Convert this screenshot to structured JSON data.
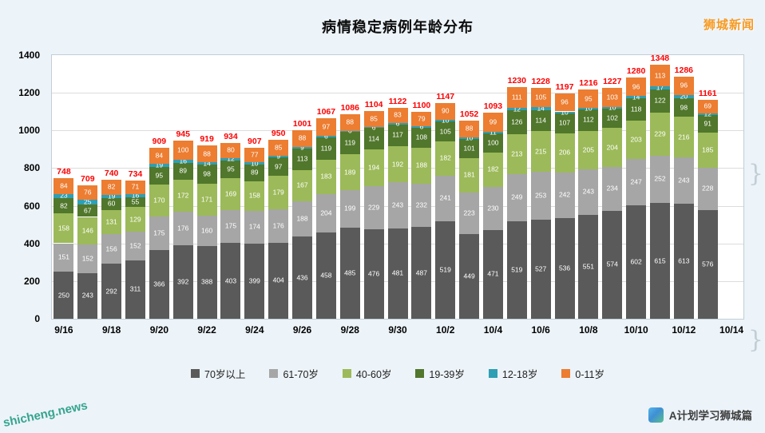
{
  "page": {
    "watermark_top_right": "狮城新闻",
    "watermark_bottom_left": "shicheng.news",
    "credit_bottom_right": "A计划学习狮城篇",
    "brace_glyph": "}"
  },
  "chart_data": {
    "type": "bar",
    "stacked": true,
    "title": "病情稳定病例年龄分布",
    "categories": [
      "9/16",
      "9/17",
      "9/18",
      "9/19",
      "9/20",
      "9/21",
      "9/22",
      "9/23",
      "9/24",
      "9/25",
      "9/26",
      "9/27",
      "9/28",
      "9/29",
      "9/30",
      "10/1",
      "10/2",
      "10/3",
      "10/4",
      "10/5",
      "10/6",
      "10/7",
      "10/8",
      "10/9",
      "10/10",
      "10/11",
      "10/12",
      "10/13"
    ],
    "x_tick_labels": [
      "9/16",
      "9/18",
      "9/20",
      "9/22",
      "9/24",
      "9/26",
      "9/28",
      "9/30",
      "10/2",
      "10/4",
      "10/6",
      "10/8",
      "10/10",
      "10/12",
      "10/14"
    ],
    "series": [
      {
        "name": "70岁以上",
        "color": "#5a5a5a",
        "values": [
          250,
          243,
          292,
          311,
          366,
          392,
          388,
          403,
          399,
          404,
          436,
          458,
          485,
          476,
          481,
          487,
          519,
          449,
          471,
          519,
          527,
          536,
          551,
          574,
          602,
          615,
          613,
          576
        ]
      },
      {
        "name": "61-70岁",
        "color": "#a6a6a6",
        "values": [
          151,
          152,
          156,
          152,
          175,
          176,
          160,
          175,
          174,
          176,
          188,
          204,
          199,
          229,
          243,
          232,
          241,
          223,
          230,
          249,
          253,
          242,
          243,
          234,
          247,
          252,
          243,
          228
        ]
      },
      {
        "name": "40-60岁",
        "color": "#9cba59",
        "values": [
          158,
          146,
          131,
          129,
          170,
          172,
          171,
          169,
          158,
          179,
          167,
          183,
          189,
          194,
          192,
          188,
          182,
          181,
          182,
          213,
          215,
          206,
          205,
          204,
          203,
          229,
          216,
          185
        ]
      },
      {
        "name": "19-39岁",
        "color": "#50772b",
        "values": [
          82,
          67,
          60,
          55,
          95,
          89,
          98,
          95,
          89,
          97,
          113,
          119,
          119,
          114,
          117,
          108,
          105,
          101,
          100,
          126,
          114,
          107,
          112,
          102,
          118,
          122,
          98,
          91
        ]
      },
      {
        "name": "12-18岁",
        "color": "#2e9fb4",
        "values": [
          23,
          25,
          19,
          16,
          19,
          16,
          14,
          12,
          10,
          9,
          9,
          6,
          6,
          6,
          6,
          6,
          10,
          10,
          11,
          12,
          14,
          10,
          10,
          10,
          14,
          17,
          20,
          12
        ]
      },
      {
        "name": "0-11岁",
        "color": "#ec7d31",
        "values": [
          84,
          76,
          82,
          71,
          84,
          100,
          88,
          80,
          77,
          85,
          88,
          97,
          88,
          85,
          83,
          79,
          90,
          88,
          99,
          111,
          105,
          96,
          95,
          103,
          96,
          113,
          96,
          69
        ]
      }
    ],
    "totals": [
      748,
      709,
      740,
      734,
      909,
      945,
      919,
      934,
      907,
      950,
      1001,
      1067,
      1086,
      1104,
      1122,
      1100,
      1147,
      1052,
      1093,
      1230,
      1228,
      1197,
      1216,
      1227,
      1280,
      1348,
      1286,
      1161
    ],
    "ylim": [
      0,
      1400
    ],
    "yticks": [
      0,
      200,
      400,
      600,
      800,
      1000,
      1200,
      1400
    ],
    "grid": true,
    "legend_position": "bottom",
    "value_label_color": "#ffffff",
    "total_label_color": "#fe0000",
    "background": "#ecf3f9",
    "plot_background": "#ffffff"
  }
}
